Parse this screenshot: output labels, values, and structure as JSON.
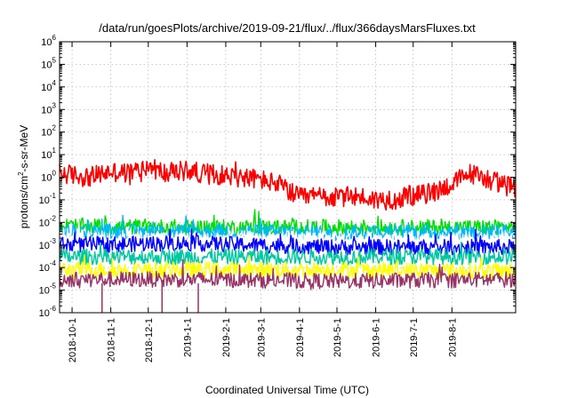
{
  "chart_data": {
    "type": "line",
    "title": "/data/run/goesPlots/archive/2019-09-21/flux/../flux/366daysMarsFluxes.txt",
    "xlabel": "Coordinated Universal Time (UTC)",
    "ylabel": {
      "prefix": "protons/cm",
      "sup": "2",
      "suffix": "-s-sr-MeV"
    },
    "y_scale": "log",
    "ylim_exp": [
      -6,
      6
    ],
    "y_ticks": [
      {
        "base": "10",
        "exp": "6"
      },
      {
        "base": "10",
        "exp": "5"
      },
      {
        "base": "10",
        "exp": "4"
      },
      {
        "base": "10",
        "exp": "3"
      },
      {
        "base": "10",
        "exp": "2"
      },
      {
        "base": "10",
        "exp": "1"
      },
      {
        "base": "10",
        "exp": "0"
      },
      {
        "base": "10",
        "exp": "-1"
      },
      {
        "base": "10",
        "exp": "-2"
      },
      {
        "base": "10",
        "exp": "-3"
      },
      {
        "base": "10",
        "exp": "-4"
      },
      {
        "base": "10",
        "exp": "-5"
      },
      {
        "base": "10",
        "exp": "-6"
      }
    ],
    "x_ticks": [
      "2018-10-1",
      "2018-11-1",
      "2018-12-1",
      "2019-1-1",
      "2019-2-1",
      "2019-3-1",
      "2019-4-1",
      "2019-5-1",
      "2019-6-1",
      "2019-7-1",
      "2019-8-1"
    ],
    "xlim": [
      "2018-09-21",
      "2019-09-21"
    ],
    "grid": true,
    "series": [
      {
        "color": "#ff0000",
        "x": [
          "2018-09-21",
          "2018-10-15",
          "2018-11-01",
          "2018-11-15",
          "2018-12-01",
          "2018-12-15",
          "2019-01-01",
          "2019-01-15",
          "2019-02-01",
          "2019-02-15",
          "2019-03-01",
          "2019-03-15",
          "2019-04-01",
          "2019-04-15",
          "2019-05-01",
          "2019-05-15",
          "2019-06-01",
          "2019-06-15",
          "2019-07-01",
          "2019-07-15",
          "2019-08-01",
          "2019-08-15",
          "2019-09-01",
          "2019-09-21"
        ],
        "y": [
          1.5,
          1.0,
          1.8,
          1.5,
          3.0,
          1.5,
          2.0,
          1.5,
          1.2,
          1.0,
          0.8,
          0.5,
          0.12,
          0.15,
          0.12,
          0.15,
          0.1,
          0.1,
          0.15,
          0.2,
          0.5,
          1.5,
          0.8,
          0.3
        ]
      },
      {
        "color": "#00e000",
        "x": [
          "2018-09-21",
          "2019-01-01",
          "2019-05-01",
          "2019-09-21"
        ],
        "y": [
          0.007,
          0.006,
          0.006,
          0.006
        ]
      },
      {
        "color": "#00b8ff",
        "x": [
          "2018-09-21",
          "2019-01-01",
          "2019-05-01",
          "2019-09-21"
        ],
        "y": [
          0.004,
          0.004,
          0.0035,
          0.004
        ]
      },
      {
        "color": "#ffffff",
        "x": [
          "2018-09-21",
          "2019-01-01",
          "2019-05-01",
          "2019-09-21"
        ],
        "y": [
          0.002,
          0.002,
          0.0018,
          0.002
        ]
      },
      {
        "color": "#0000ff",
        "x": [
          "2018-09-21",
          "2019-01-01",
          "2019-05-01",
          "2019-09-21"
        ],
        "y": [
          0.001,
          0.0012,
          0.0008,
          0.0008
        ]
      },
      {
        "color": "#00c8a0",
        "x": [
          "2018-09-21",
          "2019-01-01",
          "2019-05-01",
          "2019-09-21"
        ],
        "y": [
          0.0003,
          0.0003,
          0.0003,
          0.0003
        ]
      },
      {
        "color": "#ffff00",
        "x": [
          "2018-09-21",
          "2019-01-01",
          "2019-05-01",
          "2019-09-21"
        ],
        "y": [
          8e-05,
          8e-05,
          8e-05,
          7e-05
        ]
      },
      {
        "color": "#993366",
        "x": [
          "2018-09-21",
          "2019-01-01",
          "2019-05-01",
          "2019-09-21"
        ],
        "y": [
          3e-05,
          3e-05,
          2.5e-05,
          3e-05
        ]
      }
    ]
  }
}
